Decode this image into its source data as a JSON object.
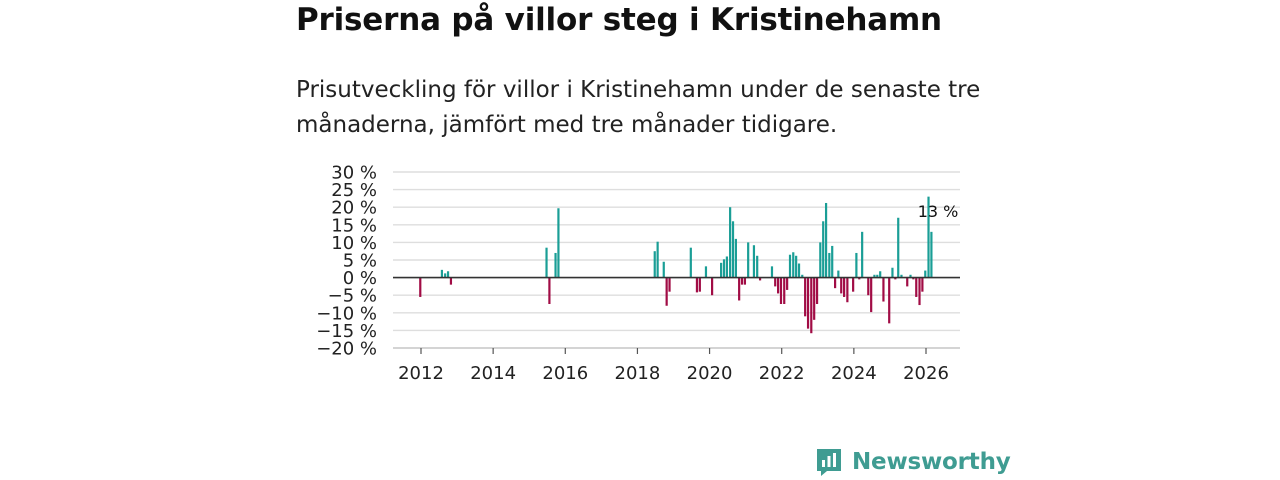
{
  "header": {
    "title": "Priserna på villor steg i Kristinehamn",
    "subtitle": "Prisutveckling för villor i Kristinehamn under de senaste tre månaderna, jämfört med tre månader tidigare."
  },
  "brand": {
    "name": "Newsworthy",
    "icon": "newsworthy-logo-icon"
  },
  "colors": {
    "positive": "#1a9e96",
    "negative": "#a10c45",
    "grid": "#dedede",
    "zero": "#333333"
  },
  "chart_data": {
    "type": "bar",
    "title": "Priserna på villor steg i Kristinehamn",
    "xlabel": "",
    "ylabel": "",
    "ylim": [
      -20,
      30
    ],
    "xlim": [
      2011.2,
      2026.9
    ],
    "yticks": [
      -20,
      -15,
      -10,
      -5,
      0,
      5,
      10,
      15,
      20,
      25,
      30
    ],
    "ytick_labels": [
      "−20 %",
      "−15 %",
      "−10 %",
      "−5 %",
      "0 %",
      "5 %",
      "10 %",
      "15 %",
      "20 %",
      "25 %",
      "30 %"
    ],
    "xticks": [
      2012,
      2014,
      2016,
      2018,
      2020,
      2022,
      2024,
      2026
    ],
    "xtick_labels": [
      "2012",
      "2014",
      "2016",
      "2018",
      "2020",
      "2022",
      "2024",
      "2026"
    ],
    "grid": true,
    "last_value_label": "13 %",
    "series": [
      {
        "name": "Prisutveckling",
        "x": [
          2011.98,
          2012.58,
          2012.67,
          2012.75,
          2012.83,
          2015.48,
          2015.56,
          2015.73,
          2015.81,
          2018.48,
          2018.56,
          2018.73,
          2018.81,
          2018.89,
          2019.48,
          2019.65,
          2019.73,
          2019.9,
          2020.07,
          2020.32,
          2020.4,
          2020.48,
          2020.57,
          2020.65,
          2020.73,
          2020.82,
          2020.9,
          2020.98,
          2021.07,
          2021.23,
          2021.32,
          2021.4,
          2021.73,
          2021.82,
          2021.9,
          2021.98,
          2022.07,
          2022.15,
          2022.23,
          2022.32,
          2022.4,
          2022.48,
          2022.57,
          2022.65,
          2022.73,
          2022.82,
          2022.9,
          2022.98,
          2023.07,
          2023.15,
          2023.23,
          2023.32,
          2023.4,
          2023.48,
          2023.57,
          2023.65,
          2023.73,
          2023.82,
          2023.98,
          2024.07,
          2024.15,
          2024.23,
          2024.4,
          2024.48,
          2024.57,
          2024.65,
          2024.73,
          2024.82,
          2024.98,
          2025.07,
          2025.15,
          2025.23,
          2025.32,
          2025.48,
          2025.57,
          2025.65,
          2025.73,
          2025.82,
          2025.9,
          2025.98,
          2026.07,
          2026.15
        ],
        "values": [
          -5.5,
          2.2,
          1.2,
          1.8,
          -2,
          8.5,
          -7.5,
          7,
          19.7,
          7.5,
          10.2,
          4.5,
          -8,
          -4,
          8.5,
          -4.2,
          -4,
          3.2,
          -5,
          4.2,
          5.2,
          6,
          20,
          16,
          11,
          -6.5,
          -2,
          -2,
          10,
          9.2,
          6.2,
          -0.8,
          3.2,
          -2.5,
          -4.5,
          -7.5,
          -7.5,
          -3.5,
          6.5,
          7.2,
          6.2,
          4,
          0.8,
          -11,
          -14.5,
          -15.8,
          -12,
          -7.5,
          10,
          16,
          21.2,
          7,
          9,
          -3,
          2,
          -4.5,
          -5.5,
          -7,
          -4,
          7,
          -0.5,
          13,
          -5,
          -9.8,
          0.8,
          0.8,
          1.8,
          -6.8,
          -13,
          2.8,
          -0.5,
          17,
          0.8,
          -2.5,
          0.8,
          -0.5,
          -5.5,
          -7.8,
          -4,
          2,
          23,
          13
        ]
      }
    ]
  }
}
